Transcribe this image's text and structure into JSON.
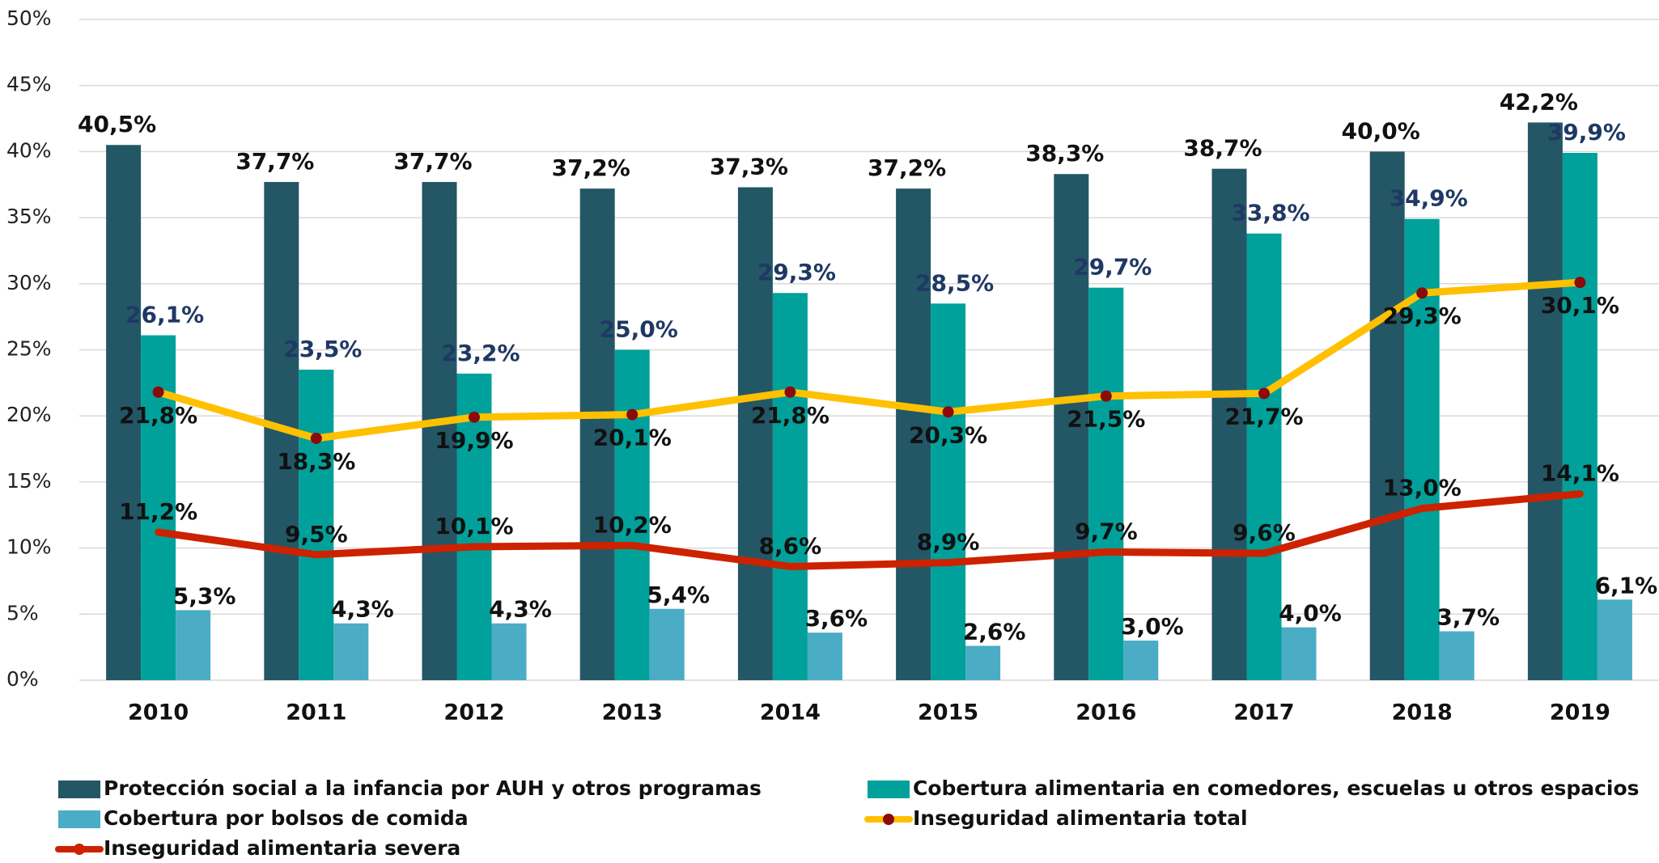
{
  "chart_data": {
    "type": "bar",
    "categories": [
      "2010",
      "2011",
      "2012",
      "2013",
      "2014",
      "2015",
      "2016",
      "2017",
      "2018",
      "2019"
    ],
    "ylim": [
      0,
      50
    ],
    "yticks": [
      {
        "value": 0,
        "label": "0%"
      },
      {
        "value": 5,
        "label": "5%"
      },
      {
        "value": 10,
        "label": "10%"
      },
      {
        "value": 15,
        "label": "15%"
      },
      {
        "value": 20,
        "label": "20%"
      },
      {
        "value": 25,
        "label": "25%"
      },
      {
        "value": 30,
        "label": "30%"
      },
      {
        "value": 35,
        "label": "35%"
      },
      {
        "value": 40,
        "label": "40%"
      },
      {
        "value": 45,
        "label": "45%"
      },
      {
        "value": 50,
        "label": "50%"
      }
    ],
    "grid": true,
    "series": [
      {
        "name": "Protección social a la infancia por AUH y otros programas",
        "type": "bar",
        "color": "#245766",
        "values": [
          40.5,
          37.7,
          37.7,
          37.2,
          37.3,
          37.2,
          38.3,
          38.7,
          40.0,
          42.2
        ],
        "value_labels": [
          "40,5%",
          "37,7%",
          "37,7%",
          "37,2%",
          "37,3%",
          "37,2%",
          "38,3%",
          "38,7%",
          "40,0%",
          "42,2%"
        ]
      },
      {
        "name": "Cobertura alimentaria en comedores, escuelas u otros espacios",
        "type": "bar",
        "color": "#00a19a",
        "values": [
          26.1,
          23.5,
          23.2,
          25.0,
          29.3,
          28.5,
          29.7,
          33.8,
          34.9,
          39.9
        ],
        "value_labels": [
          "26,1%",
          "23,5%",
          "23,2%",
          "25,0%",
          "29,3%",
          "28,5%",
          "29,7%",
          "33,8%",
          "34,9%",
          "39,9%"
        ]
      },
      {
        "name": "Cobertura por bolsos de comida",
        "type": "bar",
        "color": "#4bacc6",
        "values": [
          5.3,
          4.3,
          4.3,
          5.4,
          3.6,
          2.6,
          3.0,
          4.0,
          3.7,
          6.1
        ],
        "value_labels": [
          "5,3%",
          "4,3%",
          "4,3%",
          "5,4%",
          "3,6%",
          "2,6%",
          "3,0%",
          "4,0%",
          "3,7%",
          "6,1%"
        ]
      },
      {
        "name": "Inseguridad alimentaria total",
        "type": "line",
        "color": "#ffc000",
        "marker_color": "#8b0a0a",
        "values": [
          21.8,
          18.3,
          19.9,
          20.1,
          21.8,
          20.3,
          21.5,
          21.7,
          29.3,
          30.1
        ],
        "value_labels": [
          "21,8%",
          "18,3%",
          "19,9%",
          "20,1%",
          "21,8%",
          "20,3%",
          "21,5%",
          "21,7%",
          "29,3%",
          "30,1%"
        ]
      },
      {
        "name": "Inseguridad alimentaria severa",
        "type": "line",
        "color": "#cc2200",
        "values": [
          11.2,
          9.5,
          10.1,
          10.2,
          8.6,
          8.9,
          9.7,
          9.6,
          13.0,
          14.1
        ],
        "value_labels": [
          "11,2%",
          "9,5%",
          "10,1%",
          "10,2%",
          "8,6%",
          "8,9%",
          "9,7%",
          "9,6%",
          "13,0%",
          "14,1%"
        ]
      }
    ]
  }
}
